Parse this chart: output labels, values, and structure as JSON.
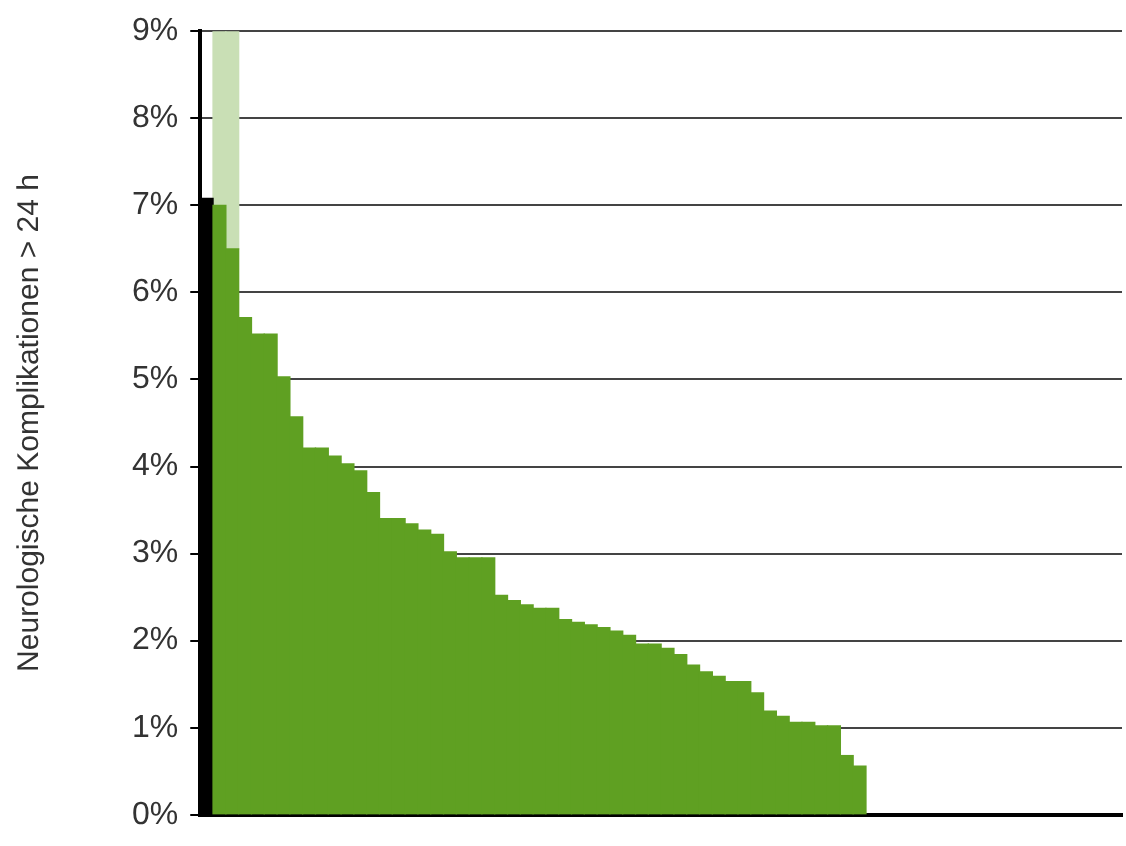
{
  "chart_data": {
    "type": "bar",
    "ylabel": "Neurologische Komplikationen > 24 h",
    "stacked": true,
    "categories": [
      null,
      null,
      null,
      null,
      null,
      null,
      null,
      null,
      null,
      null,
      null,
      null,
      null,
      null,
      null,
      null,
      null,
      null,
      null,
      null,
      null,
      null,
      null,
      null,
      null,
      null,
      null,
      null,
      null,
      null,
      null,
      null,
      null,
      null,
      null,
      null,
      null,
      null,
      null,
      null,
      null,
      null,
      null,
      null,
      null,
      null,
      null,
      null,
      null,
      null,
      null,
      null,
      null,
      null,
      null,
      null,
      null,
      null,
      null,
      null,
      null,
      null,
      null,
      null,
      null,
      null,
      null,
      null,
      null,
      null,
      null,
      null
    ],
    "series": [
      {
        "colors": [
          "#000000",
          "#5fa022",
          "#5fa022",
          "#5fa022",
          "#5fa022",
          "#5fa022",
          "#5fa022",
          "#5fa022",
          "#5fa022",
          "#5fa022",
          "#5fa022",
          "#5fa022",
          "#5fa022",
          "#5fa022",
          "#5fa022",
          "#5fa022",
          "#5fa022",
          "#5fa022",
          "#5fa022",
          "#5fa022",
          "#5fa022",
          "#5fa022",
          "#5fa022",
          "#5fa022",
          "#5fa022",
          "#5fa022",
          "#5fa022",
          "#5fa022",
          "#5fa022",
          "#5fa022",
          "#5fa022",
          "#5fa022",
          "#5fa022",
          "#5fa022",
          "#5fa022",
          "#5fa022",
          "#5fa022",
          "#5fa022",
          "#5fa022",
          "#5fa022",
          "#5fa022",
          "#5fa022",
          "#5fa022",
          "#5fa022",
          "#5fa022",
          "#5fa022",
          "#5fa022",
          "#5fa022",
          "#5fa022",
          "#5fa022",
          "#5fa022",
          "#5fa022",
          "#5fa022",
          "#5fa022",
          "#5fa022",
          "#5fa022",
          "#5fa022",
          "#5fa022",
          "#5fa022",
          "#5fa022",
          "#5fa022",
          "#5fa022",
          "#5fa022",
          "#5fa022",
          "#5fa022",
          "#5fa022",
          "#5fa022",
          "#5fa022",
          "#5fa022",
          "#5fa022",
          "#5fa022",
          "#5fa022"
        ],
        "values": [
          7.08,
          7.0,
          6.5,
          5.71,
          5.52,
          5.52,
          5.03,
          4.57,
          4.21,
          4.21,
          4.12,
          4.03,
          3.95,
          3.7,
          3.4,
          3.4,
          3.34,
          3.27,
          3.22,
          3.02,
          2.95,
          2.95,
          2.95,
          2.52,
          2.46,
          2.41,
          2.37,
          2.37,
          2.24,
          2.21,
          2.18,
          2.15,
          2.11,
          2.06,
          1.96,
          1.96,
          1.91,
          1.84,
          1.72,
          1.64,
          1.59,
          1.53,
          1.53,
          1.4,
          1.19,
          1.13,
          1.06,
          1.06,
          1.02,
          1.02,
          0.68,
          0.56,
          null,
          null,
          null,
          null,
          null,
          null,
          null,
          null,
          null,
          null,
          null,
          null,
          null,
          null,
          null,
          null,
          null,
          null,
          null,
          null
        ]
      },
      {
        "color": "#c9dfb5",
        "values": [
          null,
          2.0,
          2.5,
          null,
          null,
          null,
          null,
          null,
          null,
          null,
          null,
          null,
          null,
          null,
          null,
          null,
          null,
          null,
          null,
          null,
          null,
          null,
          null,
          null,
          null,
          null,
          null,
          null,
          null,
          null,
          null,
          null,
          null,
          null,
          null,
          null,
          null,
          null,
          null,
          null,
          null,
          null,
          null,
          null,
          null,
          null,
          null,
          null,
          null,
          null,
          null,
          null,
          null,
          null,
          null,
          null,
          null,
          null,
          null,
          null,
          null,
          null,
          null,
          null,
          null,
          null,
          null,
          null,
          null,
          null,
          null,
          null
        ]
      }
    ],
    "ylim": [
      0,
      9
    ],
    "yticks": [
      {
        "value": 0,
        "label": "0%"
      },
      {
        "value": 1,
        "label": "1%"
      },
      {
        "value": 2,
        "label": "2%"
      },
      {
        "value": 3,
        "label": "3%"
      },
      {
        "value": 4,
        "label": "4%"
      },
      {
        "value": 5,
        "label": "5%"
      },
      {
        "value": 6,
        "label": "6%"
      },
      {
        "value": 7,
        "label": "7%"
      },
      {
        "value": 8,
        "label": "8%"
      },
      {
        "value": 9,
        "label": "9%"
      }
    ],
    "grid": "y",
    "tick_labels": "y",
    "legend": false
  }
}
